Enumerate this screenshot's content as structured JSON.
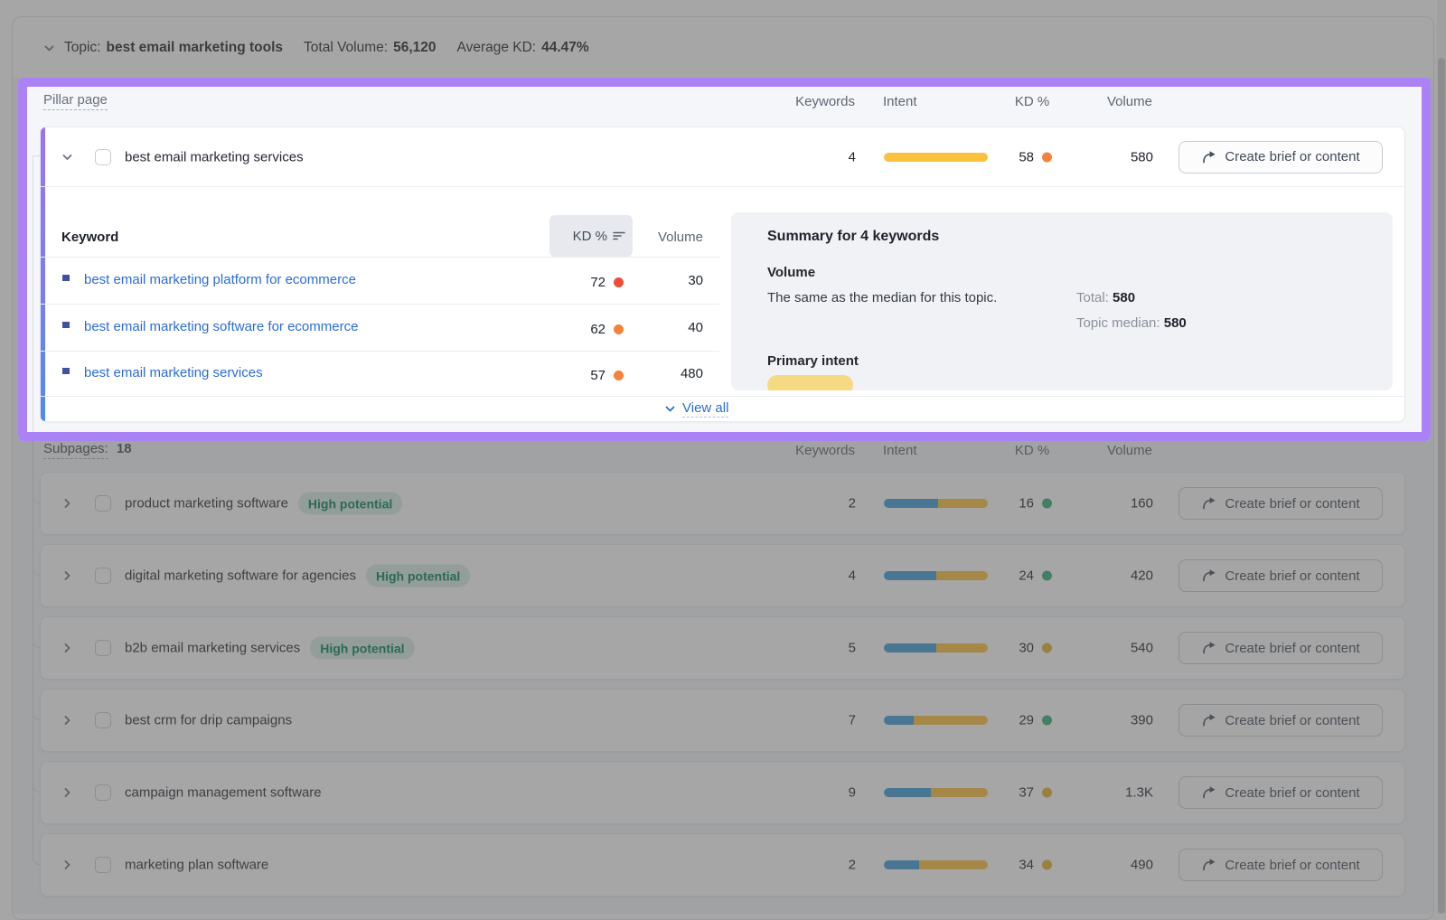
{
  "topic_bar": {
    "topic_label": "Topic:",
    "topic": "best email marketing tools",
    "total_volume_label": "Total Volume:",
    "total_volume": "56,120",
    "average_kd_label": "Average KD:",
    "average_kd": "44.47%"
  },
  "pillar_section": {
    "label": "Pillar page",
    "columns": {
      "keywords": "Keywords",
      "intent": "Intent",
      "kd": "KD %",
      "volume": "Volume"
    },
    "row": {
      "name": "best email marketing services",
      "keywords": "4",
      "kd": "58",
      "kd_level": "orange",
      "volume": "580",
      "action": "Create brief or content"
    },
    "keyword_table": {
      "columns": {
        "keyword": "Keyword",
        "kd": "KD %",
        "volume": "Volume"
      },
      "rows": [
        {
          "keyword": "best email marketing platform for ecommerce",
          "kd": "72",
          "kd_level": "red",
          "volume": "30"
        },
        {
          "keyword": "best email marketing software for ecommerce",
          "kd": "62",
          "kd_level": "orange",
          "volume": "40"
        },
        {
          "keyword": "best email marketing services",
          "kd": "57",
          "kd_level": "orange",
          "volume": "480"
        }
      ],
      "view_all": "View all"
    },
    "summary": {
      "title": "Summary for 4 keywords",
      "volume_heading": "Volume",
      "volume_note": "The same as the median for this topic.",
      "total_label": "Total:",
      "total_value": "580",
      "median_label": "Topic median:",
      "median_value": "580",
      "intent_heading": "Primary intent"
    }
  },
  "subpages_section": {
    "label": "Subpages:",
    "count": "18",
    "columns": {
      "keywords": "Keywords",
      "intent": "Intent",
      "kd": "KD %",
      "volume": "Volume"
    },
    "rows": [
      {
        "name": "product marketing software",
        "badge": "High potential",
        "keywords": "2",
        "intent_blue_pct": 52,
        "kd": "16",
        "kd_level": "green",
        "volume": "160",
        "action": "Create brief or content"
      },
      {
        "name": "digital marketing software for agencies",
        "badge": "High potential",
        "keywords": "4",
        "intent_blue_pct": 50,
        "kd": "24",
        "kd_level": "green",
        "volume": "420",
        "action": "Create brief or content"
      },
      {
        "name": "b2b email marketing services",
        "badge": "High potential",
        "keywords": "5",
        "intent_blue_pct": 50,
        "kd": "30",
        "kd_level": "yellow",
        "volume": "540",
        "action": "Create brief or content"
      },
      {
        "name": "best crm for drip campaigns",
        "badge": null,
        "keywords": "7",
        "intent_blue_pct": 29,
        "kd": "29",
        "kd_level": "green",
        "volume": "390",
        "action": "Create brief or content"
      },
      {
        "name": "campaign management software",
        "badge": null,
        "keywords": "9",
        "intent_blue_pct": 45,
        "kd": "37",
        "kd_level": "yellow",
        "volume": "1.3K",
        "action": "Create brief or content"
      },
      {
        "name": "marketing plan software",
        "badge": null,
        "keywords": "2",
        "intent_blue_pct": 34,
        "kd": "34",
        "kd_level": "yellow",
        "volume": "490",
        "action": "Create brief or content"
      }
    ]
  },
  "colors": {
    "highlight_purple": "#ab82f5",
    "link_blue": "#2b6cd9",
    "kd_red": "#ee4b3c",
    "kd_orange": "#f5823a",
    "kd_green": "#2fae76",
    "kd_yellow": "#e3af2b",
    "intent_yellow": "#fcc13c",
    "intent_blue": "#3d9cd8",
    "badge_bg": "#d8ece4",
    "badge_text": "#00805a"
  }
}
